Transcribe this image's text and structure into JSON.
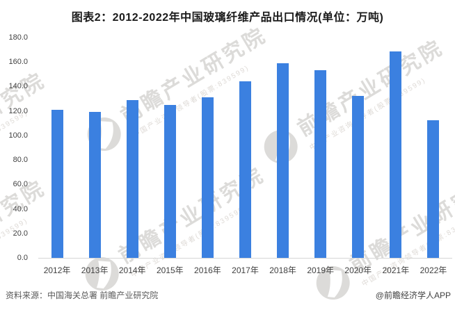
{
  "title": "图表2：2012-2022年中国玻璃纤维产品出口情况(单位：万吨)",
  "chart_data": {
    "type": "bar",
    "title": "图表2：2012-2022年中国玻璃纤维产品出口情况(单位：万吨)",
    "categories": [
      "2012年",
      "2013年",
      "2014年",
      "2015年",
      "2016年",
      "2017年",
      "2018年",
      "2019年",
      "2020年",
      "2021年",
      "2022年"
    ],
    "values": [
      121,
      119.5,
      129,
      125,
      131,
      144.5,
      159,
      153.5,
      132.5,
      168.5,
      112.5
    ],
    "unit": "万吨",
    "xlabel": "",
    "ylabel": "",
    "ylim": [
      0,
      180
    ],
    "ytick_labels": [
      "180.0",
      "160.0",
      "140.0",
      "120.0",
      "100.0",
      "80.0",
      "60.0",
      "40.0",
      "20.0",
      "0.0"
    ],
    "grid": false,
    "legend": false
  },
  "watermark": {
    "brand": "前瞻产业研究院",
    "tagline": "中国产业咨询领导者(股票:839599)",
    "logo_icon": "qianzhan-circle-swoosh"
  },
  "footer": {
    "source": "资料来源：中国海关总署 前瞻产业研究院",
    "credit": "@前瞻经济学人APP"
  },
  "colors": {
    "bar": "#3b80e0",
    "axis_line": "#d6d6d6",
    "tick_text": "#404040",
    "title_text": "#1a1a1a",
    "watermark_text": "#dcdbd9"
  }
}
